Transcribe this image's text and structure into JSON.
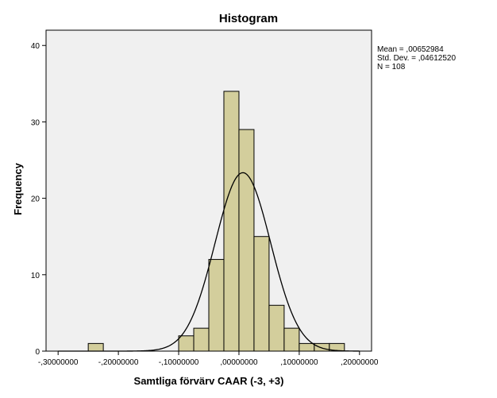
{
  "chart_data": {
    "type": "bar",
    "title": "Histogram",
    "xlabel": "Samtliga förvärv CAAR (-3, +3)",
    "ylabel": "Frequency",
    "xlim": [
      -0.32,
      0.22
    ],
    "ylim": [
      0,
      42
    ],
    "x_ticks": [
      -0.3,
      -0.2,
      -0.1,
      0.0,
      0.1,
      0.2
    ],
    "x_tick_labels": [
      "-,30000000",
      "-,20000000",
      "-,10000000",
      ",00000000",
      ",10000000",
      ",20000000"
    ],
    "y_ticks": [
      0,
      10,
      20,
      30,
      40
    ],
    "y_tick_labels": [
      "0",
      "10",
      "20",
      "30",
      "40"
    ],
    "bin_width": 0.025,
    "bins": [
      {
        "start": -0.25,
        "end": -0.225,
        "count": 1
      },
      {
        "start": -0.1,
        "end": -0.075,
        "count": 2
      },
      {
        "start": -0.075,
        "end": -0.05,
        "count": 3
      },
      {
        "start": -0.05,
        "end": -0.025,
        "count": 12
      },
      {
        "start": -0.025,
        "end": 0.0,
        "count": 34
      },
      {
        "start": 0.0,
        "end": 0.025,
        "count": 29
      },
      {
        "start": 0.025,
        "end": 0.05,
        "count": 15
      },
      {
        "start": 0.05,
        "end": 0.075,
        "count": 6
      },
      {
        "start": 0.075,
        "end": 0.1,
        "count": 3
      },
      {
        "start": 0.1,
        "end": 0.125,
        "count": 1
      },
      {
        "start": 0.125,
        "end": 0.15,
        "count": 1
      },
      {
        "start": 0.15,
        "end": 0.175,
        "count": 1
      }
    ],
    "normal_curve": {
      "mean": 0.00652984,
      "std": 0.0461252,
      "n": 108
    },
    "stats": [
      "Mean = ,00652984",
      "Std. Dev. = ,04612520",
      "N = 108"
    ],
    "colors": {
      "bar_fill": "#d3ce9c",
      "plot_bg": "#f0f0f0",
      "curve": "#000000"
    },
    "grid": false,
    "legend_position": "top-right"
  }
}
